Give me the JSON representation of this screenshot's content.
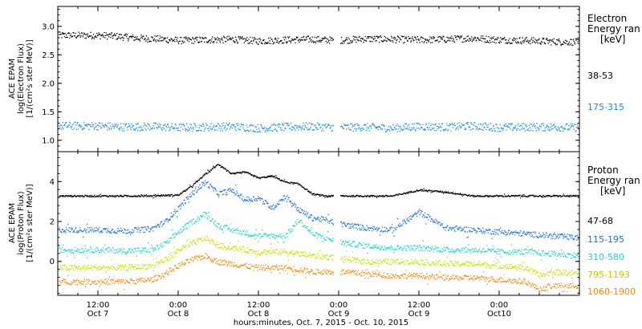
{
  "chart_data": [
    {
      "type": "scatter",
      "panel": "electron",
      "ylabel_lines": [
        "ACE EPAM",
        "log(Electron Flux)",
        "[1/(cm²s ster MeV)]"
      ],
      "ylim": [
        0.8,
        3.35
      ],
      "yticks": [
        1.0,
        1.5,
        2.0,
        2.5,
        3.0
      ],
      "ytick_labels": [
        "1.0",
        "1.5",
        "2.0",
        "2.5",
        "3.0"
      ],
      "legend_title": [
        "Electron",
        "Energy ran",
        "[keV]"
      ],
      "series": [
        {
          "name": "38-53",
          "color": "#000000",
          "x": [
            0,
            2,
            4,
            6,
            8,
            10,
            12,
            16,
            20,
            24,
            28,
            32,
            36,
            40,
            44,
            48,
            52,
            56,
            60,
            64,
            68,
            72
          ],
          "y": [
            2.85,
            2.84,
            2.82,
            2.8,
            2.79,
            2.78,
            2.76,
            2.77,
            2.78,
            2.75,
            2.77,
            2.78,
            2.76,
            2.79,
            2.78,
            2.77,
            2.78,
            2.8,
            2.77,
            2.76,
            2.74,
            2.73
          ]
        },
        {
          "name": "175-315",
          "color": "#1e88e5",
          "x": [
            0,
            4,
            8,
            12,
            16,
            20,
            24,
            28,
            32,
            36,
            40,
            44,
            48,
            52,
            56,
            60,
            64,
            68,
            72
          ],
          "y": [
            1.26,
            1.24,
            1.25,
            1.23,
            1.24,
            1.25,
            1.22,
            1.24,
            1.25,
            1.23,
            1.24,
            1.22,
            1.25,
            1.24,
            1.26,
            1.23,
            1.24,
            1.24,
            1.23
          ]
        }
      ]
    },
    {
      "type": "scatter",
      "panel": "proton",
      "ylabel_lines": [
        "ACE EPAM",
        "log(Proton Flux)",
        "[1/(cm²s ster MeV)]"
      ],
      "ylim": [
        -1.7,
        5.5
      ],
      "yticks": [
        0,
        2,
        4
      ],
      "ytick_labels": [
        "0",
        "2",
        "4"
      ],
      "legend_title": [
        "Proton",
        "Energy ran",
        "[keV]"
      ],
      "series": [
        {
          "name": "47-68",
          "color": "#000000",
          "x": [
            0,
            4,
            8,
            12,
            14,
            16,
            18,
            20,
            22,
            24,
            26,
            28,
            30,
            32,
            34,
            36,
            38,
            40,
            44,
            48,
            52,
            56,
            60,
            64,
            68,
            72
          ],
          "y": [
            3.3,
            3.3,
            3.31,
            3.35,
            3.8,
            4.4,
            4.9,
            4.4,
            4.5,
            4.2,
            4.3,
            4.0,
            3.9,
            3.4,
            3.3,
            3.3,
            3.3,
            3.3,
            3.3,
            3.6,
            3.5,
            3.3,
            3.3,
            3.3,
            3.3,
            3.3
          ]
        },
        {
          "name": "115-195",
          "color": "#1e6fd9",
          "x": [
            0,
            4,
            8,
            10,
            12,
            14,
            16,
            18,
            20,
            22,
            24,
            26,
            28,
            30,
            32,
            34,
            36,
            40,
            44,
            48,
            52,
            56,
            60,
            64,
            68,
            72
          ],
          "y": [
            1.6,
            1.55,
            1.65,
            2.0,
            2.7,
            3.4,
            4.0,
            3.4,
            3.6,
            3.1,
            3.2,
            2.7,
            3.3,
            2.6,
            2.2,
            2.1,
            1.9,
            1.7,
            1.6,
            2.5,
            1.7,
            1.6,
            1.5,
            1.4,
            1.3,
            1.2
          ]
        },
        {
          "name": "310-580",
          "color": "#27d3c8",
          "x": [
            0,
            4,
            8,
            10,
            12,
            14,
            16,
            18,
            20,
            24,
            28,
            30,
            32,
            36,
            40,
            44,
            48,
            52,
            56,
            60,
            64,
            68,
            72
          ],
          "y": [
            0.6,
            0.55,
            0.6,
            0.9,
            1.5,
            2.0,
            2.4,
            1.8,
            1.6,
            1.3,
            1.3,
            2.1,
            1.4,
            1.0,
            0.8,
            0.7,
            0.7,
            0.6,
            0.6,
            0.5,
            0.5,
            0.4,
            0.3
          ]
        },
        {
          "name": "795-1193",
          "color": "#c8e000",
          "x": [
            0,
            4,
            8,
            10,
            12,
            14,
            16,
            18,
            20,
            24,
            28,
            32,
            36,
            40,
            44,
            48,
            52,
            56,
            60,
            64,
            66,
            68,
            72
          ],
          "y": [
            -0.3,
            -0.3,
            -0.2,
            0.1,
            0.6,
            0.9,
            1.2,
            0.8,
            0.7,
            0.5,
            0.5,
            0.3,
            0.2,
            0.0,
            0.0,
            0.0,
            -0.1,
            -0.1,
            -0.2,
            -0.3,
            -0.7,
            -0.5,
            -0.6
          ]
        },
        {
          "name": "1060-1900",
          "color": "#ef8a14",
          "x": [
            0,
            4,
            8,
            10,
            12,
            14,
            16,
            18,
            20,
            24,
            28,
            32,
            36,
            40,
            44,
            48,
            52,
            56,
            60,
            64,
            66,
            68,
            72
          ],
          "y": [
            -1.0,
            -1.0,
            -0.9,
            -0.6,
            -0.2,
            0.1,
            0.3,
            0.0,
            -0.1,
            -0.3,
            -0.3,
            -0.5,
            -0.5,
            -0.6,
            -0.7,
            -0.7,
            -0.8,
            -0.8,
            -0.9,
            -1.0,
            -1.4,
            -1.2,
            -1.2
          ]
        }
      ]
    }
  ],
  "xaxis": {
    "time_start": "2015-10-07 06:00",
    "time_end": "2015-10-10 12:00",
    "ticks": [
      {
        "t": "2015-10-07 12:00",
        "line1": "12:00",
        "line2": "Oct 7"
      },
      {
        "t": "2015-10-08 00:00",
        "line1": "0:00",
        "line2": "Oct 8"
      },
      {
        "t": "2015-10-08 12:00",
        "line1": "12:00",
        "line2": "Oct 8"
      },
      {
        "t": "2015-10-09 00:00",
        "line1": "0:00",
        "line2": "Oct 9"
      },
      {
        "t": "2015-10-09 12:00",
        "line1": "12:00",
        "line2": "Oct 9"
      },
      {
        "t": "2015-10-10 00:00",
        "line1": "0:00",
        "line2": "Oct10"
      }
    ],
    "title": "hours:minutes, Oct.  7, 2015 - Oct. 10, 2015"
  }
}
